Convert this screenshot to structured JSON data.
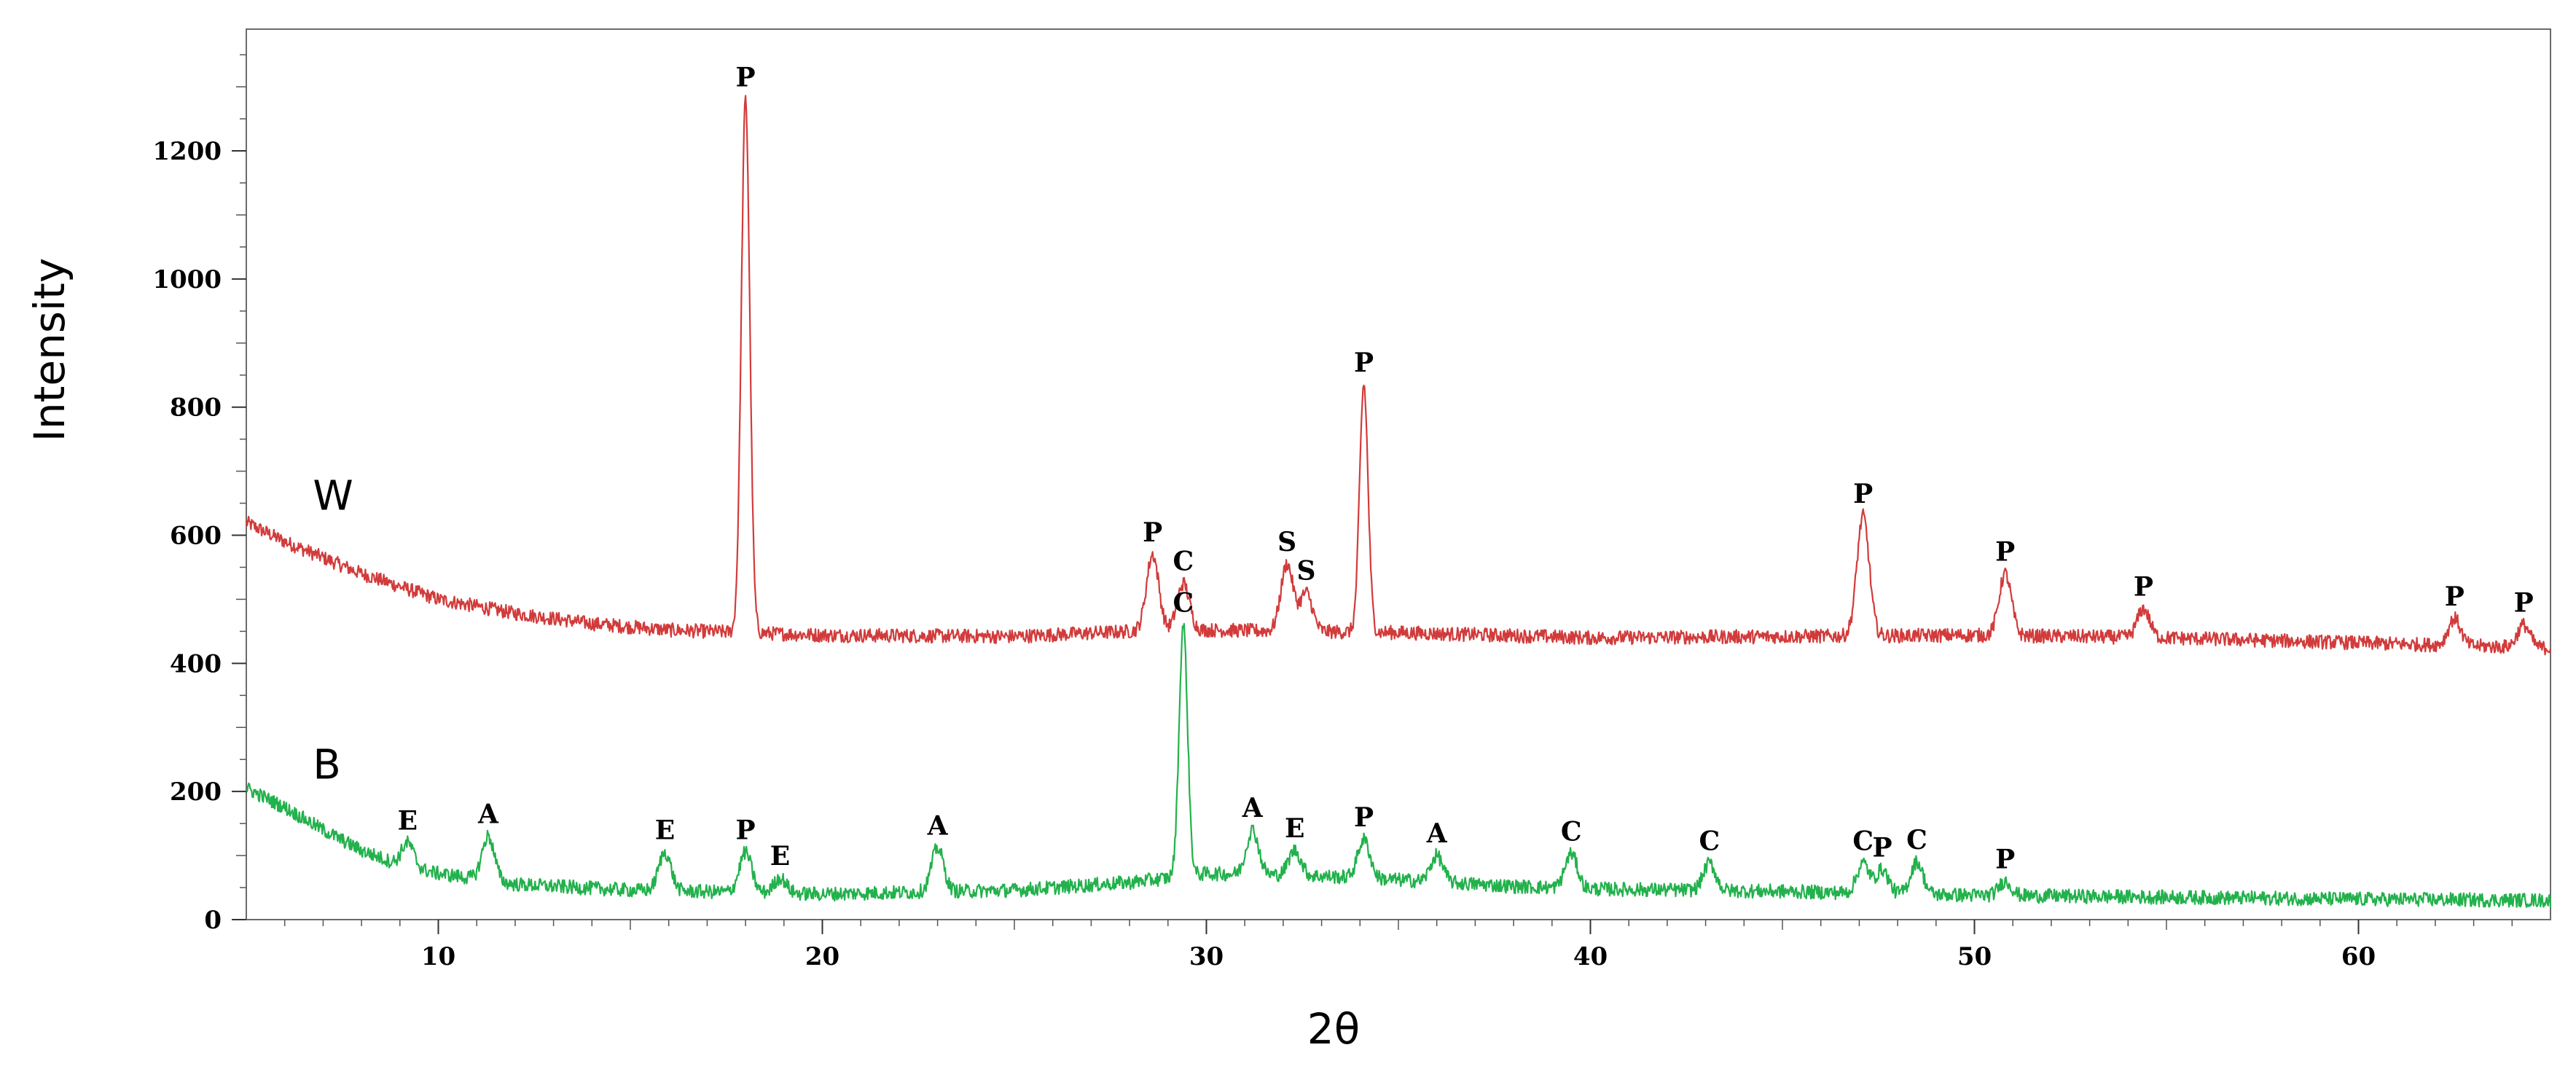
{
  "chart_data": {
    "type": "line",
    "title": "",
    "xlabel": "2θ",
    "ylabel": "Intensity",
    "xlim": [
      5,
      65
    ],
    "ylim": [
      0,
      1390
    ],
    "grid": false,
    "legend": "none",
    "x_ticks": [
      10,
      20,
      30,
      40,
      50,
      60
    ],
    "y_ticks": [
      0,
      200,
      400,
      600,
      800,
      1000,
      1200
    ],
    "series": [
      {
        "name": "W",
        "color": "#d23b3b",
        "baseline": [
          [
            5,
            620
          ],
          [
            6,
            590
          ],
          [
            8,
            540
          ],
          [
            10,
            500
          ],
          [
            12,
            478
          ],
          [
            14,
            462
          ],
          [
            16,
            452
          ],
          [
            17,
            450
          ],
          [
            20,
            444
          ],
          [
            25,
            442
          ],
          [
            28,
            450
          ],
          [
            30,
            452
          ],
          [
            35,
            448
          ],
          [
            40,
            440
          ],
          [
            45,
            442
          ],
          [
            50,
            444
          ],
          [
            55,
            440
          ],
          [
            60,
            432
          ],
          [
            65,
            424
          ]
        ],
        "peaks": [
          {
            "x": 18.0,
            "y": 1280,
            "label": "P"
          },
          {
            "x": 28.6,
            "y": 570,
            "label": "P"
          },
          {
            "x": 29.4,
            "y": 525,
            "label": "C"
          },
          {
            "x": 32.1,
            "y": 555,
            "label": "S"
          },
          {
            "x": 32.6,
            "y": 510,
            "label": "S"
          },
          {
            "x": 34.1,
            "y": 835,
            "label": "P"
          },
          {
            "x": 47.1,
            "y": 630,
            "label": "P"
          },
          {
            "x": 50.8,
            "y": 540,
            "label": "P"
          },
          {
            "x": 54.4,
            "y": 485,
            "label": "P"
          },
          {
            "x": 62.5,
            "y": 470,
            "label": "P"
          },
          {
            "x": 64.3,
            "y": 460,
            "label": "P"
          }
        ]
      },
      {
        "name": "B",
        "color": "#22b14c",
        "baseline": [
          [
            5,
            205
          ],
          [
            6,
            175
          ],
          [
            7,
            140
          ],
          [
            8,
            108
          ],
          [
            9,
            85
          ],
          [
            10,
            72
          ],
          [
            12,
            55
          ],
          [
            15,
            46
          ],
          [
            20,
            40
          ],
          [
            25,
            46
          ],
          [
            28,
            58
          ],
          [
            30,
            72
          ],
          [
            33,
            68
          ],
          [
            35,
            62
          ],
          [
            38,
            52
          ],
          [
            40,
            48
          ],
          [
            45,
            44
          ],
          [
            50,
            38
          ],
          [
            55,
            35
          ],
          [
            60,
            32
          ],
          [
            65,
            30
          ]
        ],
        "peaks": [
          {
            "x": 9.2,
            "y": 120,
            "label": "E"
          },
          {
            "x": 11.3,
            "y": 130,
            "label": "A"
          },
          {
            "x": 15.9,
            "y": 105,
            "label": "E"
          },
          {
            "x": 18.0,
            "y": 105,
            "label": "P"
          },
          {
            "x": 18.9,
            "y": 65,
            "label": "E"
          },
          {
            "x": 23.0,
            "y": 112,
            "label": "A"
          },
          {
            "x": 29.4,
            "y": 460,
            "label": "C"
          },
          {
            "x": 31.2,
            "y": 140,
            "label": "A"
          },
          {
            "x": 32.3,
            "y": 108,
            "label": "E"
          },
          {
            "x": 34.1,
            "y": 125,
            "label": "P"
          },
          {
            "x": 36.0,
            "y": 100,
            "label": "A"
          },
          {
            "x": 39.5,
            "y": 103,
            "label": "C"
          },
          {
            "x": 43.1,
            "y": 88,
            "label": "C"
          },
          {
            "x": 47.1,
            "y": 88,
            "label": "C"
          },
          {
            "x": 47.6,
            "y": 78,
            "label": "P"
          },
          {
            "x": 48.5,
            "y": 90,
            "label": "C"
          },
          {
            "x": 50.8,
            "y": 60,
            "label": "P"
          }
        ]
      }
    ]
  }
}
